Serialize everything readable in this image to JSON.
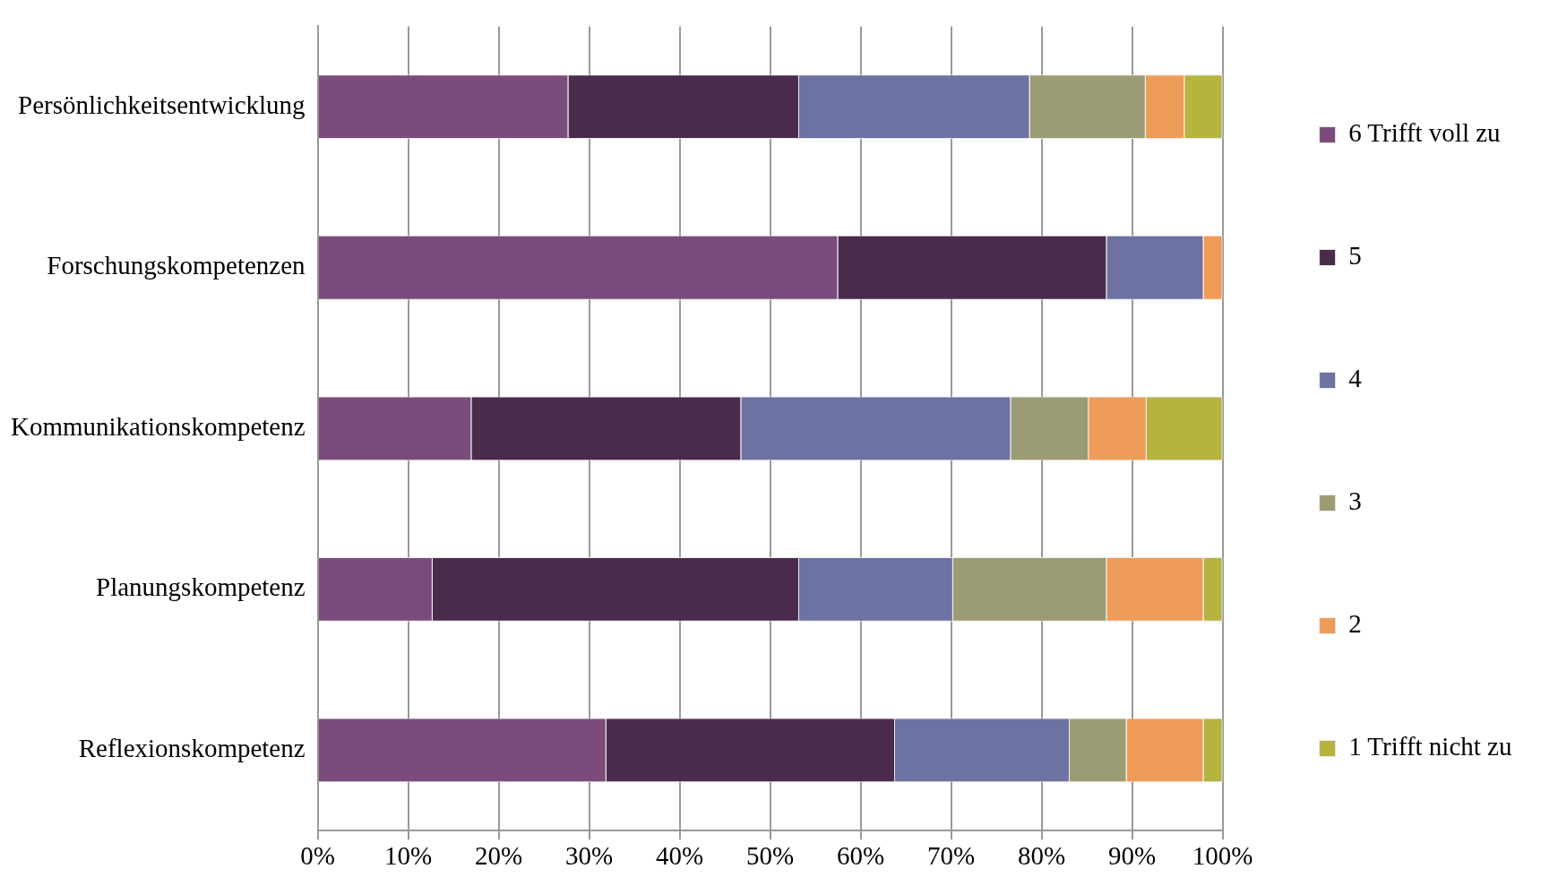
{
  "chart_data": {
    "type": "bar",
    "orientation": "horizontal",
    "stacked": true,
    "categories": [
      "Persönlichkeitsentwicklung",
      "Forschungskompetenzen",
      "Kommunikationskompetenz",
      "Planungskompetenz",
      "Reflexionskompetenz"
    ],
    "series": [
      {
        "name": "6 Trifft voll zu",
        "color": "#7b4c7b",
        "values": [
          27.7,
          57.5,
          17.0,
          12.7,
          31.9
        ]
      },
      {
        "name": "5",
        "color": "#4b2b4b",
        "values": [
          25.5,
          29.7,
          29.8,
          40.5,
          31.9
        ]
      },
      {
        "name": "4",
        "color": "#6d72a3",
        "values": [
          25.5,
          10.7,
          29.8,
          17.0,
          19.3
        ]
      },
      {
        "name": "3",
        "color": "#9c9c74",
        "values": [
          12.8,
          0,
          8.6,
          17.0,
          6.3
        ]
      },
      {
        "name": "2",
        "color": "#ef9c58",
        "values": [
          4.3,
          2.1,
          6.4,
          10.7,
          8.5
        ]
      },
      {
        "name": "1 Trifft nicht zu",
        "color": "#b5b43f",
        "values": [
          4.2,
          0,
          8.4,
          2.1,
          2.1
        ]
      }
    ],
    "xlim": [
      0,
      100
    ],
    "xticks": [
      {
        "value": 0,
        "label": "0%"
      },
      {
        "value": 10,
        "label": "10%"
      },
      {
        "value": 20,
        "label": "20%"
      },
      {
        "value": 30,
        "label": "30%"
      },
      {
        "value": 40,
        "label": "40%"
      },
      {
        "value": 50,
        "label": "50%"
      },
      {
        "value": 60,
        "label": "60%"
      },
      {
        "value": 70,
        "label": "70%"
      },
      {
        "value": 80,
        "label": "80%"
      },
      {
        "value": 90,
        "label": "90%"
      },
      {
        "value": 100,
        "label": "100%"
      }
    ],
    "grid": "x",
    "legend": "right"
  }
}
